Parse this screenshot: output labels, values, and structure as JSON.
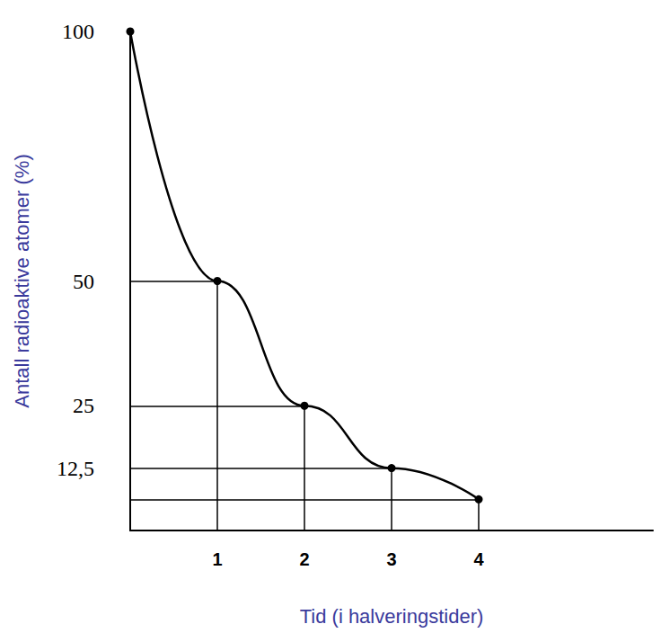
{
  "chart_data": {
    "type": "line",
    "x": [
      0,
      1,
      2,
      3,
      4
    ],
    "values": [
      100,
      50,
      25,
      12.5,
      6.25
    ],
    "color": "#000000",
    "marker": "circle",
    "xlabel": "Tid (i halveringstider)",
    "ylabel": "Antall radioaktive atomer (%)",
    "xlim": [
      0,
      6
    ],
    "xticks": [
      1,
      2,
      3,
      4
    ],
    "ylim": [
      0,
      100
    ],
    "yticks": [
      {
        "value": 12.5,
        "label": "12,5"
      },
      25,
      50,
      100
    ],
    "grid": false
  }
}
